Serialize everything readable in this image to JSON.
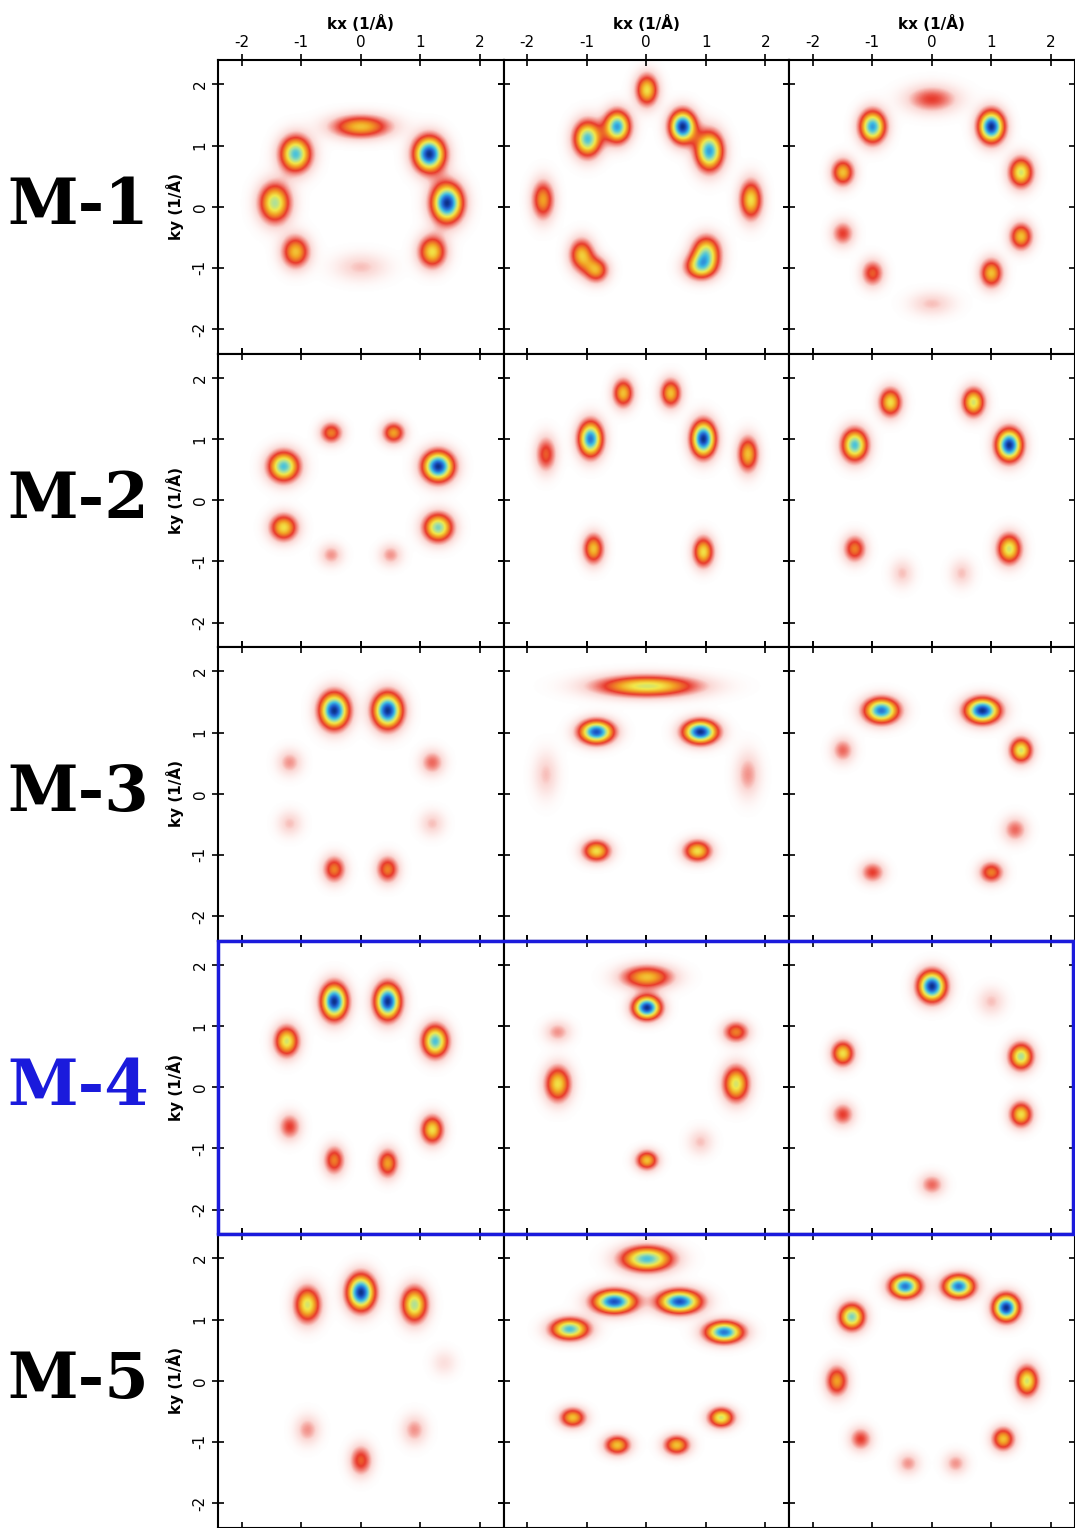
{
  "chart_data": {
    "type": "heatmap",
    "xlabel": "kx (1/Å)",
    "ylabel": "ky (1/Å)",
    "xlim": [
      -2.4,
      2.4
    ],
    "ylim": [
      -2.4,
      2.4
    ],
    "xticks": [
      -2,
      -1,
      0,
      1,
      2
    ],
    "yticks": [
      -2,
      -1,
      0,
      1,
      2
    ],
    "clim": [
      0,
      1
    ],
    "row_labels": [
      {
        "text": "M-1",
        "color": "#000000"
      },
      {
        "text": "M-2",
        "color": "#000000"
      },
      {
        "text": "M-3",
        "color": "#000000"
      },
      {
        "text": "M-4",
        "color": "#1a1adc"
      },
      {
        "text": "M-5",
        "color": "#000000"
      }
    ],
    "panels": [
      [
        {
          "blobs": [
            [
              -1.1,
              0.85,
              0.75,
              0.18,
              0.2
            ],
            [
              -1.45,
              0.05,
              0.65,
              0.18,
              0.22
            ],
            [
              -1.1,
              -0.75,
              0.5,
              0.16,
              0.18
            ],
            [
              1.15,
              0.85,
              0.95,
              0.18,
              0.2
            ],
            [
              1.45,
              0.05,
              0.95,
              0.18,
              0.22
            ],
            [
              1.2,
              -0.75,
              0.55,
              0.16,
              0.18
            ],
            [
              0,
              1.3,
              0.5,
              0.35,
              0.13
            ],
            [
              0,
              -1.0,
              0.15,
              0.3,
              0.15
            ]
          ]
        },
        {
          "blobs": [
            [
              -1.0,
              1.1,
              0.75,
              0.16,
              0.2
            ],
            [
              -0.5,
              1.3,
              0.8,
              0.15,
              0.18
            ],
            [
              0.6,
              1.3,
              0.95,
              0.15,
              0.18
            ],
            [
              1.05,
              0.9,
              0.8,
              0.16,
              0.22
            ],
            [
              0,
              1.9,
              0.55,
              0.13,
              0.18
            ],
            [
              -1.75,
              0.1,
              0.45,
              0.13,
              0.22
            ],
            [
              1.75,
              0.1,
              0.55,
              0.13,
              0.22
            ],
            [
              -1.1,
              -0.8,
              0.5,
              0.14,
              0.18
            ],
            [
              -0.85,
              -1.05,
              0.45,
              0.14,
              0.14
            ],
            [
              1.0,
              -0.75,
              0.6,
              0.16,
              0.18
            ],
            [
              0.9,
              -1.0,
              0.55,
              0.18,
              0.14
            ]
          ]
        },
        {
          "blobs": [
            [
              -1.0,
              1.3,
              0.8,
              0.15,
              0.18
            ],
            [
              1.0,
              1.3,
              0.95,
              0.15,
              0.18
            ],
            [
              -1.5,
              0.55,
              0.5,
              0.13,
              0.15
            ],
            [
              1.5,
              0.55,
              0.6,
              0.14,
              0.17
            ],
            [
              1.5,
              -0.5,
              0.5,
              0.13,
              0.15
            ],
            [
              -1.5,
              -0.45,
              0.3,
              0.13,
              0.14
            ],
            [
              -1.0,
              -1.1,
              0.35,
              0.13,
              0.15
            ],
            [
              1.0,
              -1.1,
              0.5,
              0.13,
              0.16
            ],
            [
              0,
              1.75,
              0.3,
              0.3,
              0.15
            ],
            [
              0,
              -1.6,
              0.15,
              0.25,
              0.13
            ]
          ]
        }
      ],
      [
        {
          "blobs": [
            [
              -1.3,
              0.55,
              0.75,
              0.18,
              0.17
            ],
            [
              1.3,
              0.55,
              0.95,
              0.18,
              0.17
            ],
            [
              -1.3,
              -0.45,
              0.55,
              0.16,
              0.15
            ],
            [
              1.3,
              -0.45,
              0.7,
              0.17,
              0.16
            ],
            [
              -0.5,
              1.1,
              0.4,
              0.13,
              0.12
            ],
            [
              0.55,
              1.1,
              0.45,
              0.13,
              0.12
            ],
            [
              -0.5,
              -0.9,
              0.2,
              0.13,
              0.12
            ],
            [
              0.5,
              -0.9,
              0.2,
              0.13,
              0.12
            ]
          ]
        },
        {
          "blobs": [
            [
              -0.95,
              1.0,
              0.85,
              0.14,
              0.2
            ],
            [
              0.95,
              1.0,
              0.95,
              0.14,
              0.2
            ],
            [
              -0.4,
              1.75,
              0.5,
              0.12,
              0.16
            ],
            [
              0.4,
              1.75,
              0.5,
              0.12,
              0.16
            ],
            [
              -1.7,
              0.75,
              0.35,
              0.12,
              0.2
            ],
            [
              1.7,
              0.75,
              0.5,
              0.12,
              0.2
            ],
            [
              -0.9,
              -0.8,
              0.5,
              0.12,
              0.17
            ],
            [
              0.95,
              -0.85,
              0.55,
              0.12,
              0.17
            ]
          ]
        },
        {
          "blobs": [
            [
              -1.3,
              0.9,
              0.75,
              0.15,
              0.18
            ],
            [
              1.3,
              0.9,
              0.95,
              0.15,
              0.18
            ],
            [
              -0.7,
              1.6,
              0.55,
              0.13,
              0.16
            ],
            [
              0.7,
              1.6,
              0.6,
              0.13,
              0.16
            ],
            [
              -1.3,
              -0.8,
              0.4,
              0.13,
              0.15
            ],
            [
              1.3,
              -0.8,
              0.6,
              0.14,
              0.17
            ],
            [
              -0.5,
              -1.2,
              0.15,
              0.13,
              0.15
            ],
            [
              0.5,
              -1.2,
              0.15,
              0.13,
              0.15
            ]
          ]
        }
      ],
      [
        {
          "blobs": [
            [
              -0.45,
              1.35,
              0.95,
              0.17,
              0.2
            ],
            [
              0.45,
              1.35,
              0.95,
              0.17,
              0.2
            ],
            [
              -0.45,
              -1.25,
              0.4,
              0.13,
              0.15
            ],
            [
              0.45,
              -1.25,
              0.4,
              0.13,
              0.15
            ],
            [
              -1.2,
              0.5,
              0.2,
              0.14,
              0.14
            ],
            [
              1.2,
              0.5,
              0.25,
              0.14,
              0.14
            ],
            [
              -1.2,
              -0.5,
              0.15,
              0.14,
              0.14
            ],
            [
              1.2,
              -0.5,
              0.15,
              0.14,
              0.14
            ]
          ]
        },
        {
          "blobs": [
            [
              -0.85,
              1.0,
              0.9,
              0.2,
              0.13
            ],
            [
              0.9,
              1.0,
              0.95,
              0.2,
              0.13
            ],
            [
              0,
              1.75,
              0.6,
              0.6,
              0.12
            ],
            [
              -0.85,
              -0.95,
              0.55,
              0.16,
              0.12
            ],
            [
              0.85,
              -0.95,
              0.55,
              0.16,
              0.12
            ],
            [
              1.7,
              0.3,
              0.2,
              0.14,
              0.25
            ],
            [
              -1.7,
              0.3,
              0.15,
              0.14,
              0.25
            ]
          ]
        },
        {
          "blobs": [
            [
              -0.85,
              1.35,
              0.85,
              0.2,
              0.14
            ],
            [
              0.85,
              1.35,
              0.95,
              0.2,
              0.14
            ],
            [
              1.5,
              0.7,
              0.6,
              0.13,
              0.14
            ],
            [
              -1.5,
              0.7,
              0.25,
              0.13,
              0.14
            ],
            [
              -1.0,
              -1.3,
              0.3,
              0.14,
              0.12
            ],
            [
              1.0,
              -1.3,
              0.4,
              0.14,
              0.12
            ],
            [
              1.4,
              -0.6,
              0.25,
              0.14,
              0.14
            ]
          ]
        }
      ],
      [
        {
          "blobs": [
            [
              -0.45,
              1.4,
              0.95,
              0.15,
              0.2
            ],
            [
              0.45,
              1.4,
              0.95,
              0.15,
              0.2
            ],
            [
              -1.25,
              0.75,
              0.6,
              0.14,
              0.17
            ],
            [
              1.25,
              0.75,
              0.75,
              0.15,
              0.18
            ],
            [
              -1.2,
              -0.65,
              0.3,
              0.13,
              0.15
            ],
            [
              1.2,
              -0.7,
              0.55,
              0.13,
              0.16
            ],
            [
              -0.45,
              -1.2,
              0.4,
              0.12,
              0.16
            ],
            [
              0.45,
              -1.25,
              0.45,
              0.12,
              0.16
            ]
          ]
        },
        {
          "blobs": [
            [
              0,
              1.3,
              0.95,
              0.16,
              0.13
            ],
            [
              0,
              1.8,
              0.5,
              0.3,
              0.13
            ],
            [
              1.5,
              0.05,
              0.6,
              0.15,
              0.2
            ],
            [
              -1.5,
              0.05,
              0.55,
              0.15,
              0.2
            ],
            [
              1.5,
              0.9,
              0.4,
              0.15,
              0.12
            ],
            [
              -1.5,
              0.9,
              0.2,
              0.15,
              0.12
            ],
            [
              0,
              -1.2,
              0.5,
              0.13,
              0.11
            ],
            [
              0.9,
              -0.9,
              0.15,
              0.14,
              0.14
            ]
          ]
        },
        {
          "blobs": [
            [
              0,
              1.65,
              0.95,
              0.16,
              0.17
            ],
            [
              -1.5,
              0.55,
              0.55,
              0.13,
              0.14
            ],
            [
              1.5,
              0.5,
              0.65,
              0.14,
              0.15
            ],
            [
              1.5,
              -0.45,
              0.55,
              0.13,
              0.14
            ],
            [
              -1.5,
              -0.45,
              0.3,
              0.13,
              0.13
            ],
            [
              0,
              -1.6,
              0.25,
              0.14,
              0.12
            ],
            [
              1.0,
              1.4,
              0.15,
              0.15,
              0.15
            ]
          ]
        }
      ],
      [
        {
          "blobs": [
            [
              0,
              1.45,
              0.95,
              0.16,
              0.2
            ],
            [
              -0.9,
              1.25,
              0.6,
              0.15,
              0.2
            ],
            [
              0.9,
              1.25,
              0.65,
              0.15,
              0.2
            ],
            [
              0,
              -1.3,
              0.35,
              0.13,
              0.17
            ],
            [
              -0.9,
              -0.8,
              0.2,
              0.14,
              0.16
            ],
            [
              0.9,
              -0.8,
              0.2,
              0.14,
              0.16
            ],
            [
              1.4,
              0.3,
              0.1,
              0.14,
              0.14
            ]
          ]
        },
        {
          "blobs": [
            [
              0,
              2.0,
              0.75,
              0.3,
              0.14
            ],
            [
              -0.55,
              1.3,
              0.9,
              0.25,
              0.13
            ],
            [
              0.55,
              1.3,
              0.9,
              0.25,
              0.13
            ],
            [
              -1.3,
              0.85,
              0.75,
              0.22,
              0.12
            ],
            [
              1.3,
              0.8,
              0.85,
              0.22,
              0.12
            ],
            [
              -1.25,
              -0.6,
              0.5,
              0.15,
              0.11
            ],
            [
              1.25,
              -0.6,
              0.6,
              0.15,
              0.11
            ],
            [
              -0.5,
              -1.05,
              0.5,
              0.15,
              0.11
            ],
            [
              0.5,
              -1.05,
              0.5,
              0.15,
              0.11
            ]
          ]
        },
        {
          "blobs": [
            [
              -0.45,
              1.55,
              0.85,
              0.18,
              0.13
            ],
            [
              0.45,
              1.55,
              0.85,
              0.18,
              0.13
            ],
            [
              1.25,
              1.2,
              0.95,
              0.15,
              0.15
            ],
            [
              -1.35,
              1.05,
              0.7,
              0.15,
              0.15
            ],
            [
              1.6,
              0.0,
              0.6,
              0.13,
              0.17
            ],
            [
              -1.6,
              0.0,
              0.45,
              0.13,
              0.17
            ],
            [
              -1.2,
              -0.95,
              0.3,
              0.13,
              0.13
            ],
            [
              1.2,
              -0.95,
              0.5,
              0.13,
              0.13
            ],
            [
              -0.4,
              -1.35,
              0.2,
              0.13,
              0.12
            ],
            [
              0.4,
              -1.35,
              0.2,
              0.13,
              0.12
            ]
          ]
        }
      ]
    ]
  }
}
